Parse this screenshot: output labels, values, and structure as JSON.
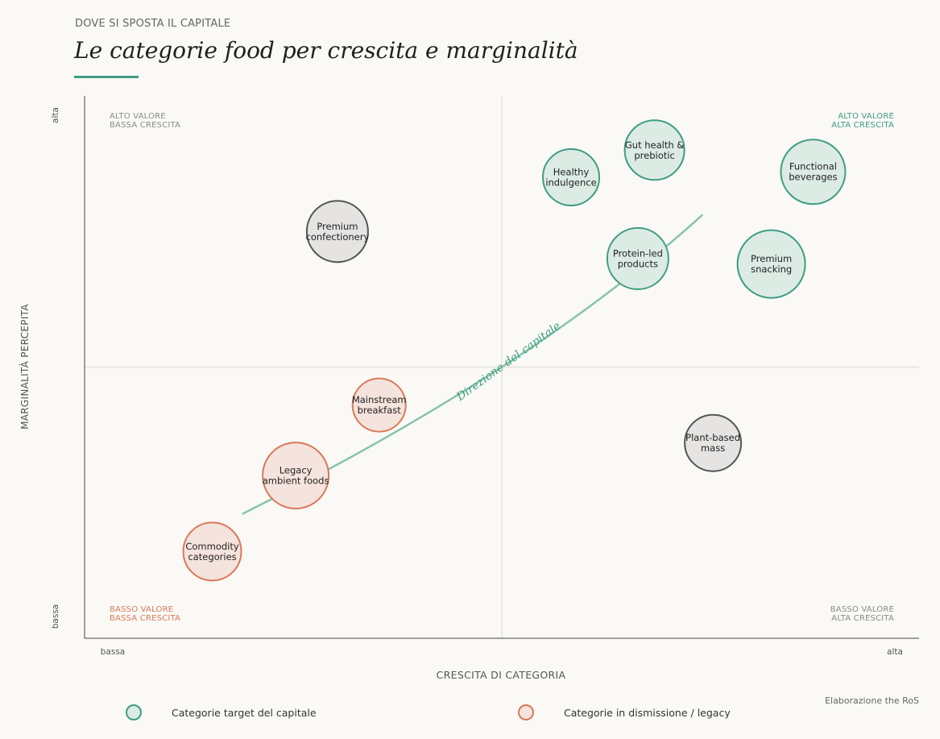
{
  "header": {
    "kicker": "DOVE SI SPOSTA IL CAPITALE",
    "title": "Le categorie food per crescita e marginalità"
  },
  "colors": {
    "target_stroke": "#3f9c84",
    "target_fill": "#dcebe4",
    "legacy_stroke": "#d9795a",
    "legacy_fill": "#f5e3dd",
    "neutral_stroke": "#555555",
    "neutral_fill": "#e5e4e2",
    "trend": "#86c4ad"
  },
  "chart_data": {
    "type": "scatter",
    "xlabel": "CRESCITA DI CATEGORIA",
    "ylabel": "MARGINALITÀ PERCEPITA",
    "x_ticks": [
      "bassa",
      "alta"
    ],
    "y_ticks": [
      "bassa",
      "alta"
    ],
    "xlim": [
      0,
      100
    ],
    "ylim": [
      0,
      100
    ],
    "midlines": {
      "x": 50,
      "y": 50
    },
    "quadrants": {
      "top_left": [
        "ALTO VALORE",
        "BASSA CRESCITA"
      ],
      "top_right": [
        "ALTO VALORE",
        "ALTA CRESCITA"
      ],
      "bottom_left": [
        "BASSO VALORE",
        "BASSA CRESCITA"
      ],
      "bottom_right": [
        "BASSO VALORE",
        "ALTA CRESCITA"
      ]
    },
    "trend_label": "Direzione del capitale",
    "trend_points": [
      [
        19,
        23
      ],
      [
        50,
        50
      ],
      [
        74,
        78
      ]
    ],
    "points": [
      {
        "lines": [
          "Gut health &",
          "prebiotic"
        ],
        "x": 68.3,
        "y": 90,
        "size": 37,
        "group": "target"
      },
      {
        "lines": [
          "Healthy",
          "indulgence"
        ],
        "x": 58.3,
        "y": 85,
        "size": 35,
        "group": "target"
      },
      {
        "lines": [
          "Functional",
          "beverages"
        ],
        "x": 87.3,
        "y": 86,
        "size": 40,
        "group": "target"
      },
      {
        "lines": [
          "Protein-led",
          "products"
        ],
        "x": 66.3,
        "y": 70,
        "size": 38,
        "group": "target"
      },
      {
        "lines": [
          "Premium",
          "snacking"
        ],
        "x": 82.3,
        "y": 69,
        "size": 42,
        "group": "target"
      },
      {
        "lines": [
          "Premium",
          "confectionery"
        ],
        "x": 30.3,
        "y": 75,
        "size": 38,
        "group": "neutral"
      },
      {
        "lines": [
          "Plant-based",
          "mass"
        ],
        "x": 75.3,
        "y": 36,
        "size": 35,
        "group": "neutral"
      },
      {
        "lines": [
          "Mainstream",
          "breakfast"
        ],
        "x": 35.3,
        "y": 43,
        "size": 33,
        "group": "legacy"
      },
      {
        "lines": [
          "Legacy",
          "ambient foods"
        ],
        "x": 25.3,
        "y": 30,
        "size": 41,
        "group": "legacy"
      },
      {
        "lines": [
          "Commodity",
          "categories"
        ],
        "x": 15.3,
        "y": 16,
        "size": 36,
        "group": "legacy"
      }
    ]
  },
  "legend": {
    "target": "Categorie target del capitale",
    "legacy": "Categorie in dismissione / legacy"
  },
  "source": "Elaborazione the RoS"
}
